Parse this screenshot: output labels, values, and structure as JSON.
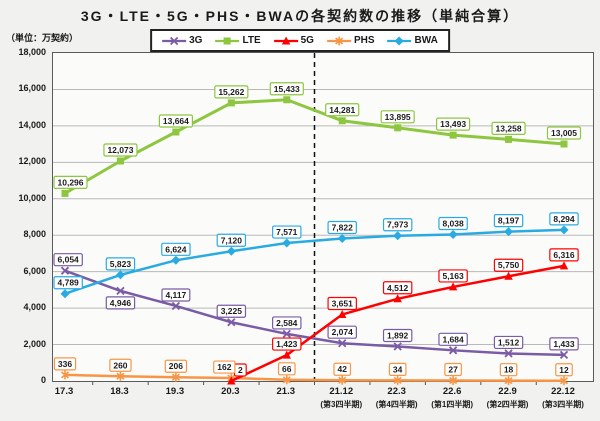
{
  "title": "3G・LTE・5G・PHS・BWAの各契約数の推移（単純合算）",
  "unit_label": "（単位：万契約）",
  "colors": {
    "background": "#f1f1ef",
    "plot_background": "#fbfbfa",
    "gridline": "#b9b9b9",
    "axis_frame": "#5a5a5a",
    "divider": "#111111",
    "text": "#1a1a1a",
    "label_box_fill": "#ffffff",
    "legend_border": "#222222"
  },
  "chart_data": {
    "type": "line",
    "title": "3G・LTE・5G・PHS・BWAの各契約数の推移（単純合算）",
    "unit": "万契約",
    "categories": [
      "17.3",
      "18.3",
      "19.3",
      "20.3",
      "21.3",
      "21.12",
      "22.3",
      "22.6",
      "22.9",
      "22.12"
    ],
    "category_sublabels": [
      "",
      "",
      "",
      "",
      "",
      "(第3四半期)",
      "(第4四半期)",
      "(第1四半期)",
      "(第2四半期)",
      "(第3四半期)"
    ],
    "ylim": [
      0,
      18000
    ],
    "ytick_step": 2000,
    "grid": "horizontal",
    "legend_position": "top-center",
    "data_labels": true,
    "divider_after_index": 4,
    "series": [
      {
        "name": "3G",
        "color": "#7a5ba5",
        "marker": "x",
        "values": [
          6054,
          4946,
          4117,
          3225,
          2584,
          2074,
          1892,
          1684,
          1512,
          1433
        ]
      },
      {
        "name": "LTE",
        "color": "#8dc63f",
        "marker": "square",
        "values": [
          10296,
          12073,
          13664,
          15262,
          15433,
          14281,
          13895,
          13493,
          13258,
          13005
        ]
      },
      {
        "name": "5G",
        "color": "#ff0000",
        "marker": "triangle",
        "values": [
          null,
          null,
          null,
          2,
          1423,
          3651,
          4512,
          5163,
          5750,
          6316
        ]
      },
      {
        "name": "PHS",
        "color": "#f79646",
        "marker": "asterisk",
        "values": [
          336,
          260,
          206,
          162,
          66,
          42,
          34,
          27,
          18,
          12
        ]
      },
      {
        "name": "BWA",
        "color": "#29abe2",
        "marker": "diamond",
        "values": [
          4789,
          5823,
          6624,
          7120,
          7571,
          7822,
          7973,
          8038,
          8197,
          8294
        ]
      }
    ],
    "draw_order": [
      0,
      1,
      3,
      2,
      4
    ],
    "label_below": {
      "3G": [
        1
      ]
    },
    "label_xoffset": {
      "5G": {
        "3": 9
      },
      "PHS": {
        "3": -7
      }
    }
  }
}
